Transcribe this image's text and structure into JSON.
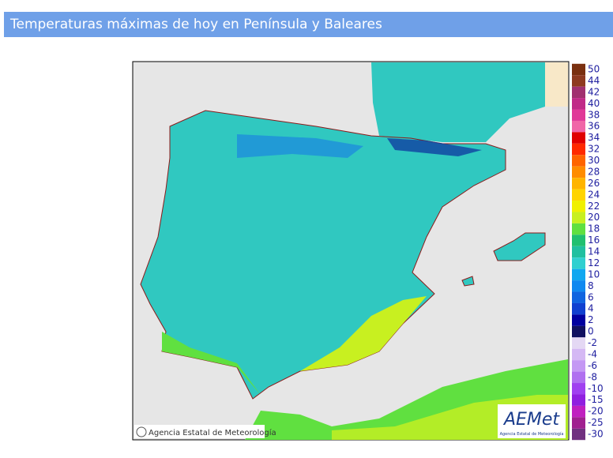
{
  "header": {
    "title": "Temperaturas máximas de hoy en Península y Baleares"
  },
  "map": {
    "credit": "Agencia Estatal de Meteorología",
    "logo": "AEMet",
    "logo_subtitle": "Agencia Estatal de Meteorología"
  },
  "legend": {
    "items": [
      {
        "value": 50,
        "color": "#7a3010"
      },
      {
        "value": 44,
        "color": "#8e3a20"
      },
      {
        "value": 42,
        "color": "#a03070"
      },
      {
        "value": 40,
        "color": "#c02a88"
      },
      {
        "value": 38,
        "color": "#e03898"
      },
      {
        "value": 36,
        "color": "#f066a8"
      },
      {
        "value": 34,
        "color": "#e00000"
      },
      {
        "value": 32,
        "color": "#ff2a00"
      },
      {
        "value": 30,
        "color": "#ff6400"
      },
      {
        "value": 28,
        "color": "#ff8c00"
      },
      {
        "value": 26,
        "color": "#ffb400"
      },
      {
        "value": 24,
        "color": "#ffd400"
      },
      {
        "value": 22,
        "color": "#f0f000"
      },
      {
        "value": 20,
        "color": "#c8f020"
      },
      {
        "value": 18,
        "color": "#60e040"
      },
      {
        "value": 16,
        "color": "#20c070"
      },
      {
        "value": 14,
        "color": "#20c0a0"
      },
      {
        "value": 12,
        "color": "#30d0d0"
      },
      {
        "value": 10,
        "color": "#10a8f0"
      },
      {
        "value": 8,
        "color": "#1088f0"
      },
      {
        "value": 6,
        "color": "#1064e0"
      },
      {
        "value": 4,
        "color": "#1040d0"
      },
      {
        "value": 2,
        "color": "#0000a0"
      },
      {
        "value": 0,
        "color": "#101060"
      },
      {
        "value": -2,
        "color": "#e4d8f4"
      },
      {
        "value": -4,
        "color": "#d4b8f4"
      },
      {
        "value": -6,
        "color": "#c498f4"
      },
      {
        "value": -8,
        "color": "#b070f0"
      },
      {
        "value": -10,
        "color": "#a040f0"
      },
      {
        "value": -15,
        "color": "#9020e0"
      },
      {
        "value": -20,
        "color": "#c020c0"
      },
      {
        "value": -25,
        "color": "#a02090"
      },
      {
        "value": -30,
        "color": "#703080"
      }
    ]
  }
}
